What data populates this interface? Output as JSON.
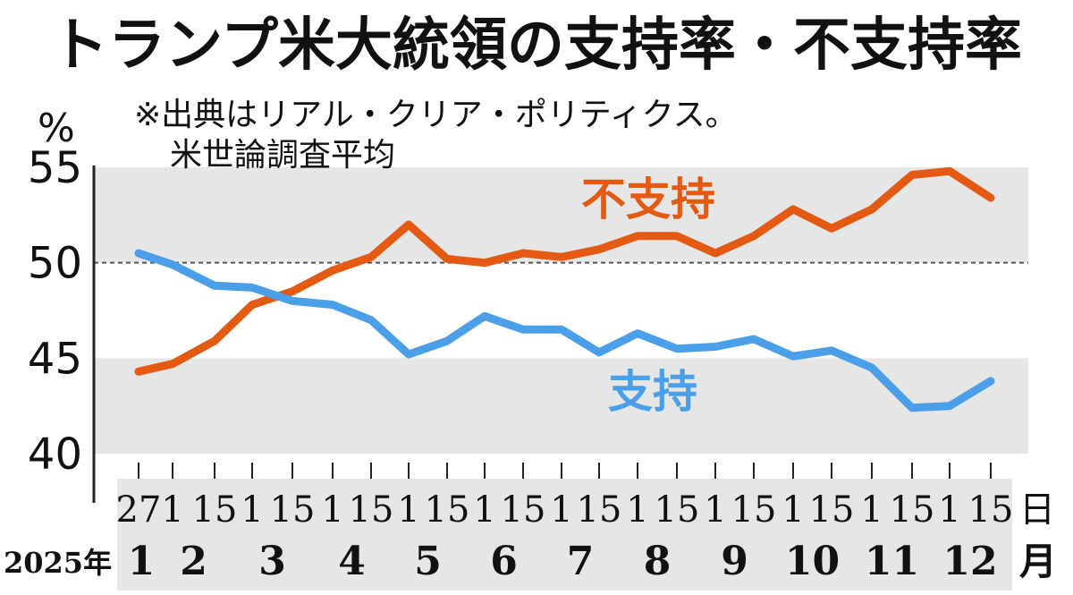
{
  "chart_data": {
    "type": "line",
    "title": "トランプ米大統領の支持率・不支持率",
    "note_lines": [
      "※出典はリアル・クリア・ポリティクス。",
      "米世論調査平均"
    ],
    "ylabel": "%",
    "ylim": [
      40,
      55
    ],
    "yticks": [
      40,
      45,
      50,
      55
    ],
    "reference_line": 50,
    "year_label": "2025年",
    "day_unit": "日",
    "month_unit": "月",
    "x": [
      "2025-01-27",
      "2025-02-01",
      "2025-02-15",
      "2025-03-01",
      "2025-03-15",
      "2025-04-01",
      "2025-04-15",
      "2025-05-01",
      "2025-05-15",
      "2025-06-01",
      "2025-06-15",
      "2025-07-01",
      "2025-07-15",
      "2025-08-01",
      "2025-08-15",
      "2025-09-01",
      "2025-09-15",
      "2025-10-01",
      "2025-10-15",
      "2025-11-01",
      "2025-11-15",
      "2025-12-01",
      "2025-12-15"
    ],
    "months": [
      "1",
      "2",
      "3",
      "4",
      "5",
      "6",
      "7",
      "8",
      "9",
      "10",
      "11",
      "12"
    ],
    "series": [
      {
        "name": "不支持",
        "color": "#e45a12",
        "values": [
          44.3,
          44.7,
          45.9,
          47.8,
          48.5,
          49.6,
          50.3,
          52.0,
          50.2,
          50.0,
          50.5,
          50.3,
          50.7,
          51.4,
          51.4,
          50.5,
          51.4,
          52.8,
          51.8,
          52.8,
          54.6,
          54.8,
          53.4
        ]
      },
      {
        "name": "支持",
        "color": "#4a9fe8",
        "values": [
          50.5,
          49.9,
          48.8,
          48.7,
          48.0,
          47.8,
          47.0,
          45.2,
          45.9,
          47.2,
          46.5,
          46.5,
          45.3,
          46.3,
          45.5,
          45.6,
          46.0,
          45.1,
          45.4,
          44.5,
          42.4,
          42.5,
          43.8
        ]
      }
    ],
    "band_color": "#e6e6e6"
  }
}
